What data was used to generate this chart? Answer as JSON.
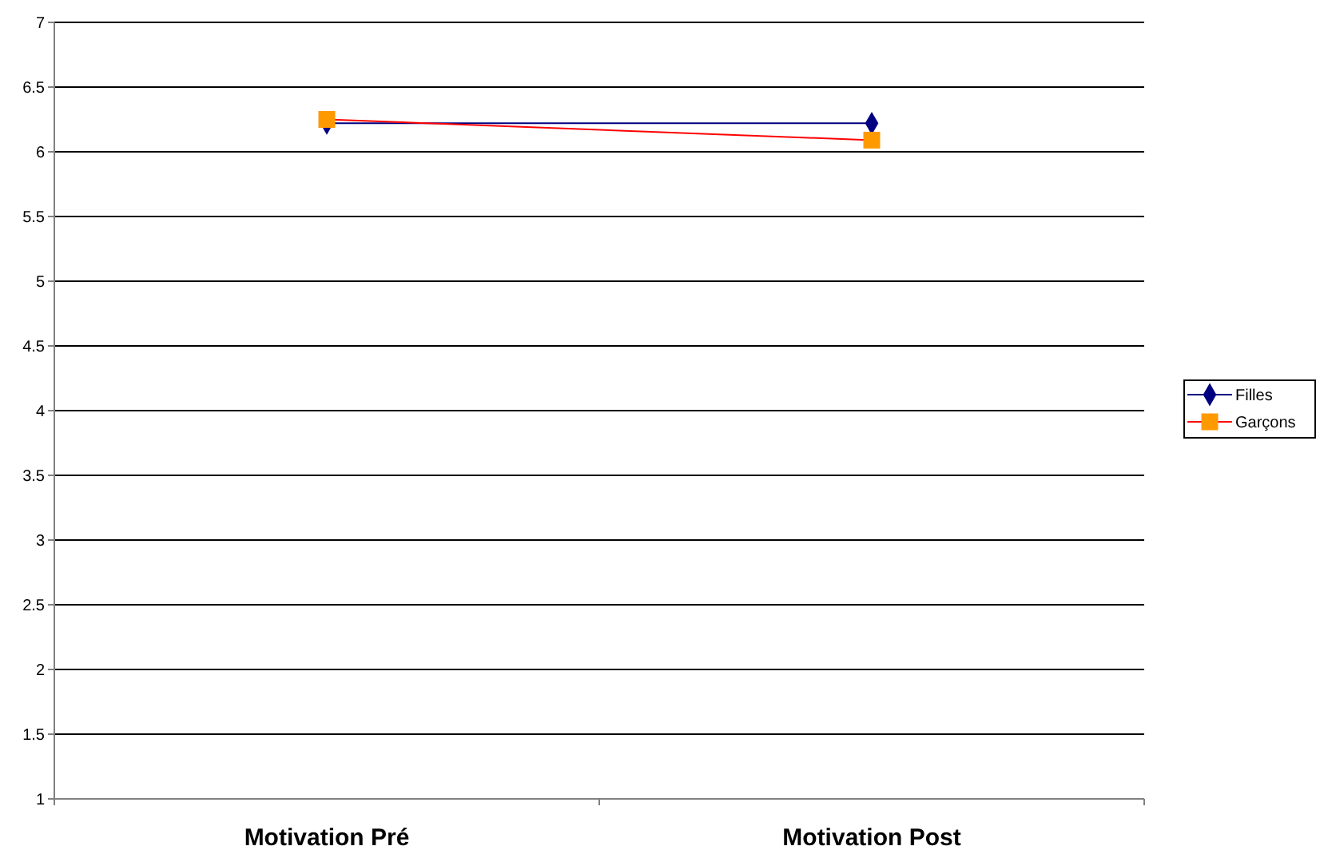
{
  "chart_data": {
    "type": "line",
    "categories": [
      "Motivation Pré",
      "Motivation Post"
    ],
    "series": [
      {
        "name": "Filles",
        "color": "#000080",
        "values": [
          6.22,
          6.22
        ],
        "marker": "diamond"
      },
      {
        "name": "Garçons",
        "color": "#ff0000",
        "colors": [
          "#ff9900",
          "#ff9900"
        ],
        "values": [
          6.25,
          6.09
        ],
        "marker": "square"
      }
    ],
    "ylim": [
      1,
      7
    ],
    "yticks": [
      1,
      1.5,
      2,
      2.5,
      3,
      3.5,
      4,
      4.5,
      5,
      5.5,
      6,
      6.5,
      7
    ],
    "grid": "y",
    "legend": "right"
  }
}
